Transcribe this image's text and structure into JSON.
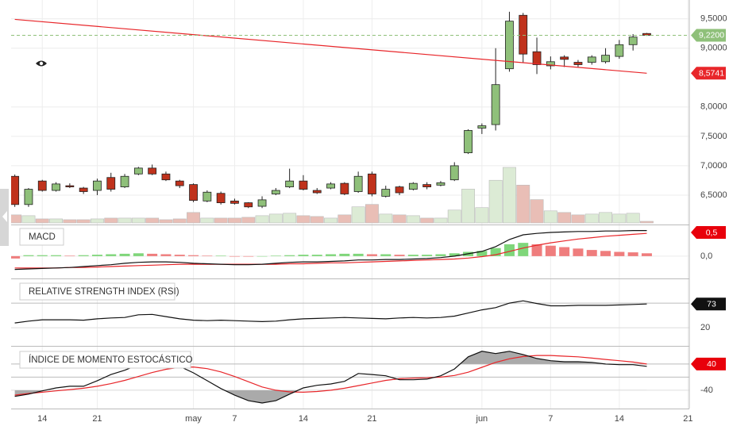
{
  "chart_data": [
    {
      "type": "candlestick",
      "categories": [
        null,
        null,
        "14",
        null,
        null,
        null,
        "21",
        null,
        null,
        null,
        null,
        null,
        null,
        "may",
        null,
        null,
        "7",
        null,
        null,
        null,
        null,
        "14",
        null,
        null,
        null,
        null,
        "21",
        null,
        null,
        null,
        null,
        null,
        null,
        null,
        "jun",
        null,
        null,
        null,
        null,
        "7",
        null,
        null,
        null,
        null,
        "14",
        null,
        null,
        null,
        null,
        "21"
      ],
      "open": [
        6.82,
        6.34,
        6.74,
        6.58,
        6.66,
        6.62,
        6.58,
        6.8,
        6.64,
        6.86,
        6.96,
        6.86,
        6.74,
        6.68,
        6.4,
        6.53,
        6.4,
        6.37,
        6.31,
        6.52,
        6.64,
        6.74,
        6.58,
        6.62,
        6.7,
        6.56,
        6.86,
        6.48,
        6.64,
        6.6,
        6.68,
        6.67,
        6.76,
        7.22,
        7.64,
        7.7,
        8.65,
        9.56,
        8.94,
        8.7,
        8.85,
        8.76,
        8.76,
        8.77,
        8.86,
        9.06,
        9.25,
        null,
        null,
        null
      ],
      "high": [
        6.85,
        6.62,
        6.76,
        6.72,
        6.7,
        6.64,
        6.78,
        6.88,
        6.86,
        6.98,
        7.02,
        6.9,
        6.76,
        6.7,
        6.58,
        6.56,
        6.44,
        6.38,
        6.48,
        6.62,
        6.95,
        6.84,
        6.62,
        6.72,
        6.72,
        6.9,
        6.9,
        6.66,
        6.66,
        6.72,
        6.72,
        6.74,
        7.06,
        7.62,
        7.72,
        9.0,
        9.62,
        9.6,
        9.18,
        8.86,
        8.88,
        8.8,
        8.88,
        9.0,
        9.14,
        9.24,
        9.26,
        null,
        null,
        null
      ],
      "low": [
        6.3,
        6.3,
        6.56,
        6.56,
        6.62,
        6.52,
        6.5,
        6.56,
        6.62,
        6.84,
        6.84,
        6.74,
        6.62,
        6.38,
        6.38,
        6.34,
        6.34,
        6.28,
        6.28,
        6.5,
        6.62,
        6.58,
        6.52,
        6.6,
        6.5,
        6.54,
        6.48,
        6.46,
        6.5,
        6.58,
        6.6,
        6.65,
        6.74,
        7.2,
        7.54,
        7.6,
        8.6,
        8.76,
        8.56,
        8.64,
        8.68,
        8.68,
        8.72,
        8.74,
        8.82,
        8.96,
        9.21,
        null,
        null,
        null
      ],
      "close": [
        6.34,
        6.6,
        6.58,
        6.69,
        6.64,
        6.56,
        6.74,
        6.6,
        6.82,
        6.96,
        6.86,
        6.76,
        6.66,
        6.41,
        6.55,
        6.37,
        6.36,
        6.3,
        6.42,
        6.58,
        6.74,
        6.6,
        6.54,
        6.69,
        6.52,
        6.82,
        6.52,
        6.6,
        6.54,
        6.7,
        6.64,
        6.71,
        7.0,
        7.6,
        7.68,
        8.38,
        9.46,
        8.9,
        8.72,
        8.77,
        8.81,
        8.72,
        8.85,
        8.88,
        9.06,
        9.19,
        9.22,
        null,
        null,
        null
      ],
      "volume": [
        10,
        9,
        5,
        5,
        4,
        4,
        5,
        6,
        6,
        6,
        6,
        4,
        5,
        13,
        6,
        6,
        6,
        7,
        9,
        11,
        12,
        9,
        8,
        6,
        10,
        20,
        23,
        11,
        10,
        9,
        6,
        6,
        16,
        42,
        19,
        53,
        69,
        47,
        29,
        15,
        13,
        10,
        11,
        13,
        11,
        12,
        2,
        null,
        null,
        null
      ],
      "up_color": "#8fc07a",
      "down_color": "#c0321c",
      "volume_up_color": "#dcebd5",
      "volume_down_color": "#e9beb6",
      "ylim": [
        6.0,
        9.82
      ],
      "yticks": [
        {
          "value": 6.5,
          "label": "6,5000"
        },
        {
          "value": 7.0,
          "label": "7,0000"
        },
        {
          "value": 7.5,
          "label": "7,5000"
        },
        {
          "value": 8.0,
          "label": "8,0000"
        },
        {
          "value": 9.0,
          "label": "9,0000"
        },
        {
          "value": 9.5,
          "label": "9,5000"
        }
      ],
      "trendline": {
        "start": 9.49,
        "end": 8.5741,
        "end_label": "8,5741",
        "color": "#e8262a"
      },
      "last": {
        "value": 9.22,
        "label": "9,2200",
        "color": "#8fc07a"
      }
    },
    {
      "type": "macd",
      "title": "MACD",
      "macd": [
        -0.28,
        -0.27,
        -0.26,
        -0.25,
        -0.24,
        -0.22,
        -0.2,
        -0.18,
        -0.15,
        -0.13,
        -0.12,
        -0.12,
        -0.13,
        -0.15,
        -0.16,
        -0.17,
        -0.18,
        -0.18,
        -0.17,
        -0.15,
        -0.13,
        -0.12,
        -0.12,
        -0.11,
        -0.1,
        -0.08,
        -0.08,
        -0.07,
        -0.07,
        -0.06,
        -0.05,
        -0.03,
        0.0,
        0.05,
        0.1,
        0.2,
        0.35,
        0.45,
        0.48,
        0.5,
        0.51,
        0.52,
        0.52,
        0.53,
        0.53,
        0.54,
        0.54,
        null,
        null,
        null
      ],
      "signal": [
        -0.25,
        -0.25,
        -0.25,
        -0.25,
        -0.24,
        -0.24,
        -0.23,
        -0.22,
        -0.21,
        -0.2,
        -0.19,
        -0.18,
        -0.17,
        -0.17,
        -0.17,
        -0.17,
        -0.17,
        -0.17,
        -0.17,
        -0.17,
        -0.16,
        -0.16,
        -0.15,
        -0.14,
        -0.14,
        -0.13,
        -0.12,
        -0.11,
        -0.1,
        -0.09,
        -0.08,
        -0.07,
        -0.06,
        -0.04,
        -0.01,
        0.03,
        0.1,
        0.17,
        0.23,
        0.28,
        0.32,
        0.36,
        0.39,
        0.42,
        0.44,
        0.46,
        0.48,
        null,
        null,
        null
      ],
      "histogram": [
        -0.05,
        0.02,
        0.02,
        0.02,
        0.01,
        0.02,
        0.03,
        0.04,
        0.05,
        0.06,
        0.05,
        0.04,
        0.03,
        0.02,
        0.01,
        0.01,
        -0.01,
        -0.01,
        0.0,
        0.01,
        0.02,
        0.03,
        0.03,
        0.04,
        0.05,
        0.05,
        0.04,
        0.04,
        0.03,
        0.03,
        0.03,
        0.04,
        0.06,
        0.09,
        0.11,
        0.17,
        0.25,
        0.28,
        0.25,
        0.22,
        0.19,
        0.16,
        0.13,
        0.11,
        0.09,
        0.08,
        0.06,
        null,
        null,
        null
      ],
      "macd_color": "#111111",
      "signal_color": "#e8262a",
      "rise_color": "#7fd67a",
      "fall_color": "#ef7d7d",
      "ylim": [
        -0.47,
        0.65
      ],
      "yticks": [
        {
          "value": 0,
          "label": "0,0"
        }
      ],
      "last": {
        "value": 0.5,
        "label": "0,5",
        "color": "#e8000b"
      }
    },
    {
      "type": "rsi",
      "title": "RELATIVE STRENGTH INDEX (RSI)",
      "values": [
        31,
        35,
        38,
        38,
        38,
        37,
        40,
        42,
        43,
        49,
        50,
        45,
        40,
        37,
        36,
        37,
        36,
        35,
        34,
        35,
        38,
        40,
        41,
        42,
        43,
        42,
        41,
        40,
        42,
        43,
        42,
        43,
        46,
        53,
        60,
        65,
        75,
        80,
        74,
        69,
        69,
        70,
        70,
        70,
        71,
        72,
        73,
        null,
        null,
        null
      ],
      "color": "#111111",
      "ylim": [
        -20,
        128
      ],
      "yticks": [
        20
      ],
      "levels": [
        75,
        20
      ],
      "last": {
        "value": 73,
        "color": "#111111"
      }
    },
    {
      "type": "stochastic",
      "title": "ÍNDICE DE MOMENTO ESTOCÁSTICO",
      "k": [
        -59,
        -52,
        -42,
        -33,
        -28,
        -28,
        -11,
        8,
        21,
        38,
        50,
        45,
        33,
        13,
        -11,
        -35,
        -55,
        -72,
        -79,
        -72,
        -52,
        -33,
        -25,
        -21,
        -13,
        11,
        8,
        4,
        -8,
        -8,
        -6,
        4,
        25,
        62,
        79,
        72,
        79,
        69,
        57,
        50,
        47,
        47,
        45,
        40,
        38,
        38,
        33,
        null,
        null,
        null
      ],
      "d": [
        -55,
        -50,
        -46,
        -42,
        -38,
        -34,
        -28,
        -20,
        -10,
        2,
        14,
        24,
        30,
        31,
        26,
        16,
        2,
        -14,
        -30,
        -40,
        -45,
        -46,
        -44,
        -40,
        -34,
        -26,
        -18,
        -10,
        -5,
        -3,
        -2,
        0,
        5,
        15,
        30,
        45,
        56,
        63,
        66,
        66,
        64,
        62,
        58,
        54,
        50,
        46,
        40,
        null,
        null,
        null
      ],
      "k_color": "#111111",
      "d_color": "#e8262a",
      "shade_color": "#aaaaaa",
      "ylim": [
        -96,
        93
      ],
      "yticks": [
        -40
      ],
      "levels": [
        40,
        0,
        -40
      ],
      "last": {
        "value": 40,
        "color": "#e8000b"
      }
    }
  ]
}
